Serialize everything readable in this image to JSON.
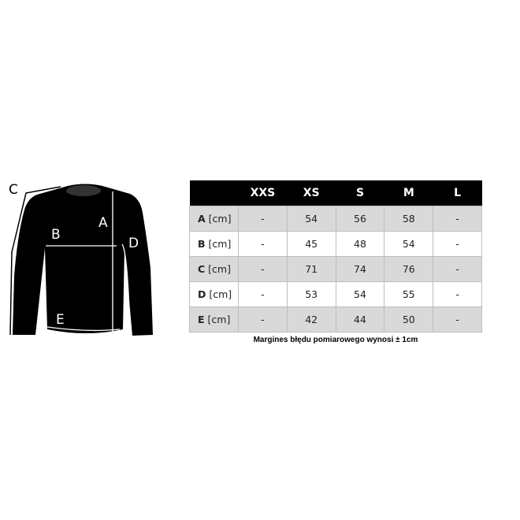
{
  "diagram": {
    "labels": [
      "A",
      "B",
      "C",
      "D",
      "E"
    ]
  },
  "table": {
    "headers": [
      "",
      "XXS",
      "XS",
      "S",
      "M",
      "L"
    ],
    "unit": "[cm]",
    "rows": [
      {
        "key": "A",
        "values": [
          "-",
          "54",
          "56",
          "58",
          "-"
        ]
      },
      {
        "key": "B",
        "values": [
          "-",
          "45",
          "48",
          "54",
          "-"
        ]
      },
      {
        "key": "C",
        "values": [
          "-",
          "71",
          "74",
          "76",
          "-"
        ]
      },
      {
        "key": "D",
        "values": [
          "-",
          "53",
          "54",
          "55",
          "-"
        ]
      },
      {
        "key": "E",
        "values": [
          "-",
          "42",
          "44",
          "50",
          "-"
        ]
      }
    ]
  },
  "note": "Margines błędu pomiarowego wynosi ± 1cm"
}
